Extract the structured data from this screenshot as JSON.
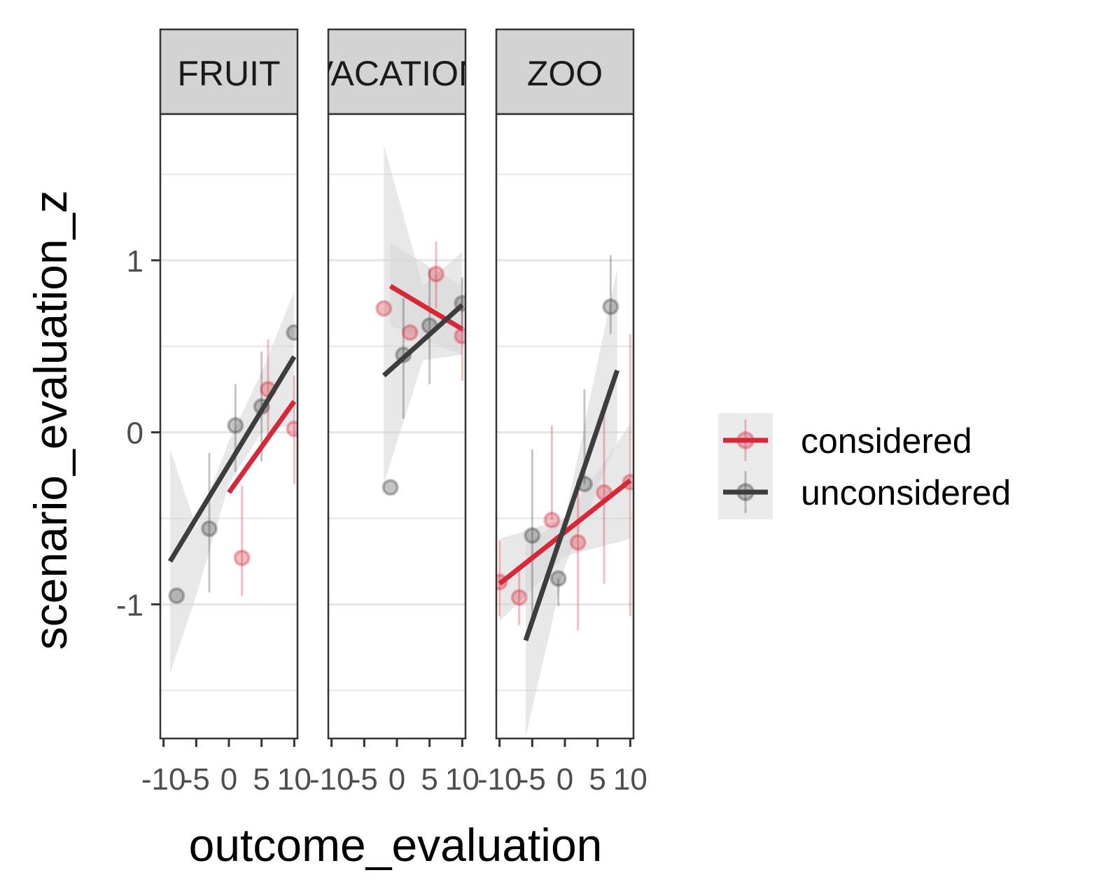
{
  "chart_data": {
    "type": "scatter",
    "facet_by": "scenario",
    "xlabel": "outcome_evaluation",
    "ylabel": "scenario_evaluation_z",
    "xlim": [
      -10.5,
      10.5
    ],
    "ylim": [
      -1.78,
      1.85
    ],
    "x_ticks": [
      -10,
      -5,
      0,
      5,
      10
    ],
    "x_tick_labels": [
      "-10",
      "-5",
      "0",
      "5",
      "10"
    ],
    "y_ticks": [
      -1,
      0,
      1
    ],
    "y_tick_labels": [
      "-1",
      "0",
      "1"
    ],
    "grid": "horizontal",
    "legend_position": "right",
    "colors": {
      "considered": "#d62839",
      "unconsidered": "#3d3d3d",
      "ribbon": "#d6d6d6",
      "strip": "#d3d3d3"
    },
    "series_names": [
      "considered",
      "unconsidered"
    ],
    "panels": [
      {
        "title": "FRUIT",
        "series": [
          {
            "name": "considered",
            "points": [
              {
                "x": 2,
                "y": -0.73,
                "lo": -0.95,
                "hi": -0.31
              },
              {
                "x": 6,
                "y": 0.25,
                "lo": -0.02,
                "hi": 0.54
              },
              {
                "x": 10,
                "y": 0.02,
                "lo": -0.3,
                "hi": 0.33
              }
            ],
            "fit": {
              "x": [
                0,
                10
              ],
              "y": [
                -0.35,
                0.18
              ]
            },
            "ribbon": null
          },
          {
            "name": "unconsidered",
            "points": [
              {
                "x": -8,
                "y": -0.95,
                "lo": null,
                "hi": null
              },
              {
                "x": -3,
                "y": -0.56,
                "lo": -0.93,
                "hi": -0.12
              },
              {
                "x": 1,
                "y": 0.04,
                "lo": -0.23,
                "hi": 0.28
              },
              {
                "x": 5,
                "y": 0.15,
                "lo": -0.17,
                "hi": 0.47
              },
              {
                "x": 10,
                "y": 0.58,
                "lo": null,
                "hi": null
              }
            ],
            "fit": {
              "x": [
                -9,
                10
              ],
              "y": [
                -0.75,
                0.44
              ]
            },
            "ribbon": {
              "x": [
                -9,
                -5,
                0,
                5,
                10
              ],
              "lo": [
                -1.4,
                -0.95,
                -0.3,
                0.0,
                0.05
              ],
              "hi": [
                -0.1,
                -0.55,
                -0.05,
                0.35,
                0.82
              ]
            }
          }
        ]
      },
      {
        "title": "VACATION",
        "series": [
          {
            "name": "considered",
            "points": [
              {
                "x": -2,
                "y": 0.72,
                "lo": null,
                "hi": null
              },
              {
                "x": 2,
                "y": 0.58,
                "lo": null,
                "hi": null
              },
              {
                "x": 6,
                "y": 0.92,
                "lo": 0.72,
                "hi": 1.11
              },
              {
                "x": 10,
                "y": 0.56,
                "lo": 0.3,
                "hi": 0.78
              }
            ],
            "fit": {
              "x": [
                -1,
                10
              ],
              "y": [
                0.85,
                0.6
              ]
            },
            "ribbon": {
              "x": [
                -1,
                10
              ],
              "lo": [
                0.62,
                0.45
              ],
              "hi": [
                1.1,
                0.85
              ]
            }
          },
          {
            "name": "unconsidered",
            "points": [
              {
                "x": -1,
                "y": -0.32,
                "lo": null,
                "hi": null
              },
              {
                "x": 1,
                "y": 0.45,
                "lo": 0.08,
                "hi": 0.78
              },
              {
                "x": 5,
                "y": 0.62,
                "lo": 0.28,
                "hi": 0.95
              },
              {
                "x": 10,
                "y": 0.75,
                "lo": 0.58,
                "hi": 0.9
              }
            ],
            "fit": {
              "x": [
                -2,
                10
              ],
              "y": [
                0.33,
                0.74
              ]
            },
            "ribbon": {
              "x": [
                -2,
                4,
                10
              ],
              "lo": [
                -0.3,
                0.42,
                0.45
              ],
              "hi": [
                1.67,
                0.85,
                1.05
              ]
            }
          }
        ]
      },
      {
        "title": "ZOO",
        "series": [
          {
            "name": "considered",
            "points": [
              {
                "x": -10,
                "y": -0.87,
                "lo": -1.07,
                "hi": -0.63
              },
              {
                "x": -7,
                "y": -0.96,
                "lo": -1.12,
                "hi": -0.78
              },
              {
                "x": -2,
                "y": -0.51,
                "lo": null,
                "hi": 0.04
              },
              {
                "x": 2,
                "y": -0.64,
                "lo": -1.15,
                "hi": -0.35
              },
              {
                "x": 6,
                "y": -0.35,
                "lo": -0.88,
                "hi": 0.18
              },
              {
                "x": 10,
                "y": -0.29,
                "lo": -1.07,
                "hi": 0.57
              }
            ],
            "fit": {
              "x": [
                -10,
                10
              ],
              "y": [
                -0.88,
                -0.28
              ]
            },
            "ribbon": {
              "x": [
                -10,
                0,
                10
              ],
              "lo": [
                -1.1,
                -0.72,
                -0.62
              ],
              "hi": [
                -0.62,
                -0.5,
                0.05
              ]
            }
          },
          {
            "name": "unconsidered",
            "points": [
              {
                "x": -5,
                "y": -0.6,
                "lo": -1.1,
                "hi": -0.1
              },
              {
                "x": -1,
                "y": -0.85,
                "lo": -1.01,
                "hi": null
              },
              {
                "x": 3,
                "y": -0.3,
                "lo": null,
                "hi": 0.25
              },
              {
                "x": 7,
                "y": 0.73,
                "lo": 0.57,
                "hi": 1.03
              }
            ],
            "fit": {
              "x": [
                -6,
                8
              ],
              "y": [
                -1.21,
                0.36
              ]
            },
            "ribbon": {
              "x": [
                -6,
                0,
                8
              ],
              "lo": [
                -1.77,
                -0.78,
                -0.05
              ],
              "hi": [
                -0.65,
                -0.5,
                0.95
              ]
            }
          }
        ]
      }
    ]
  }
}
